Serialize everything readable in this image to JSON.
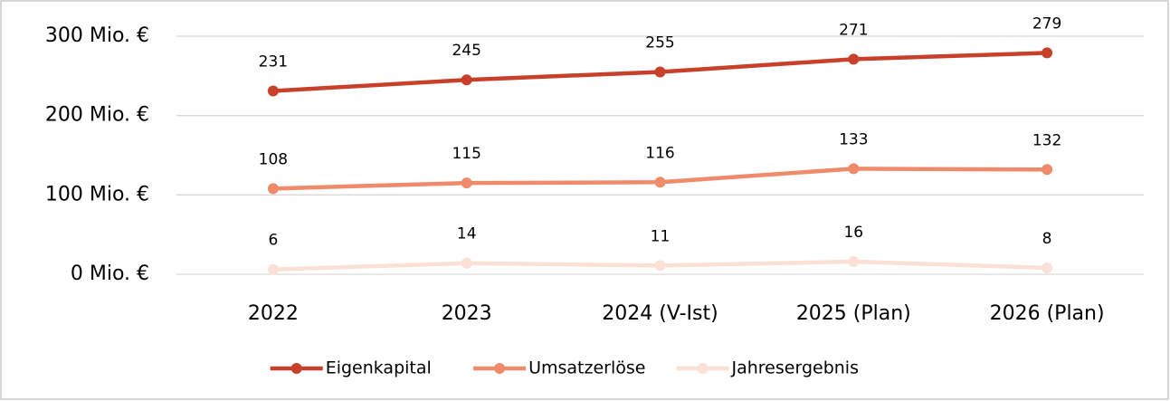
{
  "chart_data": {
    "type": "line",
    "categories": [
      "2022",
      "2023",
      "2024 (V-Ist)",
      "2025 (Plan)",
      "2026 (Plan)"
    ],
    "series": [
      {
        "name": "Eigenkapital",
        "color": "#c8402a",
        "values": [
          231,
          245,
          255,
          271,
          279
        ]
      },
      {
        "name": "Umsatzerlöse",
        "color": "#ef8a6a",
        "values": [
          108,
          115,
          116,
          133,
          132
        ]
      },
      {
        "name": "Jahresergebnis",
        "color": "#fbe0d6",
        "values": [
          6,
          14,
          11,
          16,
          8
        ]
      }
    ],
    "ylim": [
      0,
      300
    ],
    "yticks": [
      {
        "value": 0,
        "label": "0 Mio. €"
      },
      {
        "value": 100,
        "label": "100 Mio. €"
      },
      {
        "value": 200,
        "label": "200 Mio. €"
      },
      {
        "value": 300,
        "label": "300 Mio. €"
      }
    ],
    "grid": true,
    "legend": "bottom"
  }
}
